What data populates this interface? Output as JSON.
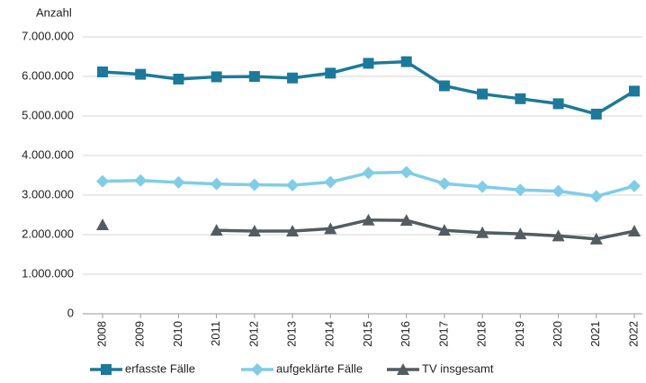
{
  "chart_data": {
    "type": "line",
    "y_label": "Anzahl",
    "categories": [
      "2008",
      "2009",
      "2010",
      "2011",
      "2012",
      "2013",
      "2014",
      "2015",
      "2016",
      "2017",
      "2018",
      "2019",
      "2020",
      "2021",
      "2022"
    ],
    "series": [
      {
        "name": "erfasste Fälle",
        "color": "#1b7a9b",
        "marker": "square",
        "values": [
          6114000,
          6054000,
          5933000,
          5990000,
          5998000,
          5961000,
          6082000,
          6331000,
          6373000,
          5762000,
          5555000,
          5436000,
          5310000,
          5048000,
          5628000
        ]
      },
      {
        "name": "aufgeklärte Fälle",
        "color": "#80cde8",
        "marker": "diamond",
        "values": [
          3350000,
          3370000,
          3320000,
          3280000,
          3260000,
          3250000,
          3330000,
          3560000,
          3580000,
          3290000,
          3210000,
          3130000,
          3100000,
          2970000,
          3230000
        ]
      },
      {
        "name": "TV insgesamt",
        "color": "#525c61",
        "marker": "triangle",
        "values": [
          2250000,
          null,
          null,
          2110000,
          2090000,
          2090000,
          2150000,
          2370000,
          2360000,
          2110000,
          2050000,
          2020000,
          1970000,
          1890000,
          2090000
        ]
      }
    ],
    "ylim": [
      0,
      7000000
    ],
    "yticks": [
      0,
      {
        "value": 1000000,
        "label": "1.000.000"
      },
      {
        "value": 2000000,
        "label": "2.000.000"
      },
      {
        "value": 3000000,
        "label": "3.000.000"
      },
      {
        "value": 4000000,
        "label": "4.000.000"
      },
      {
        "value": 5000000,
        "label": "5.000.000"
      },
      {
        "value": 6000000,
        "label": "6.000.000"
      },
      {
        "value": 7000000,
        "label": "7.000.000"
      }
    ],
    "grid": true
  }
}
